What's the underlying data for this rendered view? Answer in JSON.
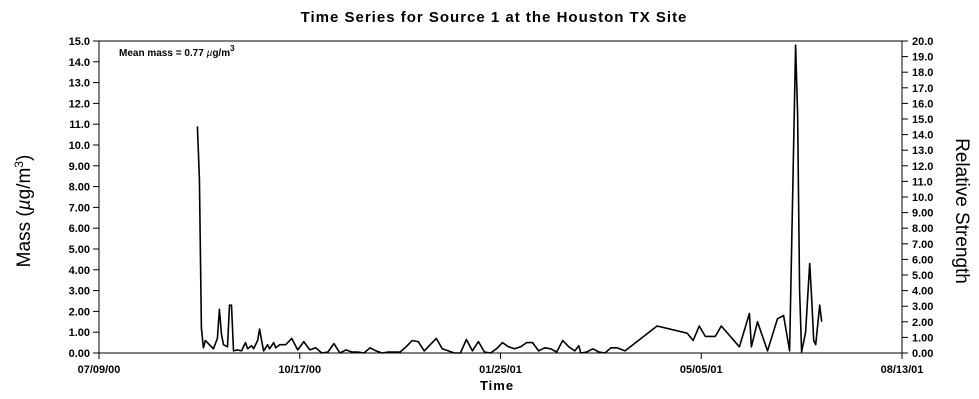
{
  "chart_data": {
    "type": "line",
    "title": "Time Series for Source 1 at the Houston TX Site",
    "xlabel": "Time",
    "ylabel": "Mass (µg/m³)",
    "ylabel_parts": {
      "prefix": "Mass (",
      "mu": "µ",
      "unit": "g/m",
      "sup": "3",
      "suffix": ")"
    },
    "y2label": "Relative Strength",
    "annotation": {
      "text": "Mean mass = 0.77 ",
      "mu": "µ",
      "unit": "g/m",
      "sup": "3"
    },
    "x_ticks": [
      "07/09/00",
      "10/17/00",
      "01/25/01",
      "05/05/01",
      "08/13/01"
    ],
    "xlim": [
      "07/09/00",
      "08/13/01"
    ],
    "ylim": [
      0,
      15
    ],
    "y2lim": [
      0,
      20
    ],
    "y_ticks": [
      "0.00",
      "1.00",
      "2.00",
      "3.00",
      "4.00",
      "5.00",
      "6.00",
      "7.00",
      "8.00",
      "9.00",
      "10.0",
      "11.0",
      "12.0",
      "13.0",
      "14.0",
      "15.0"
    ],
    "y2_ticks": [
      "0.00",
      "1.00",
      "2.00",
      "3.00",
      "4.00",
      "5.00",
      "6.00",
      "7.00",
      "8.00",
      "9.00",
      "10.0",
      "11.0",
      "12.0",
      "13.0",
      "14.0",
      "15.0",
      "16.0",
      "17.0",
      "18.0",
      "19.0",
      "20.0"
    ],
    "grid": false,
    "series": [
      {
        "color": "#000000",
        "points": [
          {
            "x": "2000-08-27",
            "y": 10.9
          },
          {
            "x": "2000-08-28",
            "y": 8.4
          },
          {
            "x": "2000-08-29",
            "y": 1.2
          },
          {
            "x": "2000-08-30",
            "y": 0.25
          },
          {
            "x": "2000-08-31",
            "y": 0.6
          },
          {
            "x": "2000-09-02",
            "y": 0.4
          },
          {
            "x": "2000-09-04",
            "y": 0.2
          },
          {
            "x": "2000-09-06",
            "y": 0.7
          },
          {
            "x": "2000-09-07",
            "y": 2.1
          },
          {
            "x": "2000-09-08",
            "y": 0.9
          },
          {
            "x": "2000-09-09",
            "y": 0.4
          },
          {
            "x": "2000-09-11",
            "y": 0.3
          },
          {
            "x": "2000-09-12",
            "y": 2.3
          },
          {
            "x": "2000-09-13",
            "y": 2.3
          },
          {
            "x": "2000-09-14",
            "y": 0.1
          },
          {
            "x": "2000-09-16",
            "y": 0.15
          },
          {
            "x": "2000-09-18",
            "y": 0.1
          },
          {
            "x": "2000-09-20",
            "y": 0.5
          },
          {
            "x": "2000-09-21",
            "y": 0.2
          },
          {
            "x": "2000-09-23",
            "y": 0.35
          },
          {
            "x": "2000-09-24",
            "y": 0.2
          },
          {
            "x": "2000-09-26",
            "y": 0.6
          },
          {
            "x": "2000-09-27",
            "y": 1.15
          },
          {
            "x": "2000-09-28",
            "y": 0.6
          },
          {
            "x": "2000-09-29",
            "y": 0.1
          },
          {
            "x": "2000-10-01",
            "y": 0.4
          },
          {
            "x": "2000-10-02",
            "y": 0.2
          },
          {
            "x": "2000-10-04",
            "y": 0.5
          },
          {
            "x": "2000-10-05",
            "y": 0.25
          },
          {
            "x": "2000-10-07",
            "y": 0.4
          },
          {
            "x": "2000-10-10",
            "y": 0.4
          },
          {
            "x": "2000-10-13",
            "y": 0.7
          },
          {
            "x": "2000-10-16",
            "y": 0.15
          },
          {
            "x": "2000-10-19",
            "y": 0.55
          },
          {
            "x": "2000-10-22",
            "y": 0.15
          },
          {
            "x": "2000-10-25",
            "y": 0.25
          },
          {
            "x": "2000-10-28",
            "y": 0.0
          },
          {
            "x": "2000-10-31",
            "y": 0.05
          },
          {
            "x": "2000-11-03",
            "y": 0.45
          },
          {
            "x": "2000-11-06",
            "y": 0.0
          },
          {
            "x": "2000-11-09",
            "y": 0.15
          },
          {
            "x": "2000-11-12",
            "y": 0.05
          },
          {
            "x": "2000-11-15",
            "y": 0.05
          },
          {
            "x": "2000-11-18",
            "y": 0.0
          },
          {
            "x": "2000-11-21",
            "y": 0.25
          },
          {
            "x": "2000-11-24",
            "y": 0.1
          },
          {
            "x": "2000-11-27",
            "y": 0.0
          },
          {
            "x": "2000-11-30",
            "y": 0.05
          },
          {
            "x": "2000-12-03",
            "y": 0.05
          },
          {
            "x": "2000-12-06",
            "y": 0.05
          },
          {
            "x": "2000-12-09",
            "y": 0.3
          },
          {
            "x": "2000-12-12",
            "y": 0.6
          },
          {
            "x": "2000-12-15",
            "y": 0.55
          },
          {
            "x": "2000-12-18",
            "y": 0.1
          },
          {
            "x": "2000-12-21",
            "y": 0.4
          },
          {
            "x": "2000-12-24",
            "y": 0.7
          },
          {
            "x": "2000-12-27",
            "y": 0.2
          },
          {
            "x": "2000-12-30",
            "y": 0.1
          },
          {
            "x": "2001-01-02",
            "y": 0.0
          },
          {
            "x": "2001-01-05",
            "y": 0.0
          },
          {
            "x": "2001-01-08",
            "y": 0.65
          },
          {
            "x": "2001-01-11",
            "y": 0.1
          },
          {
            "x": "2001-01-14",
            "y": 0.55
          },
          {
            "x": "2001-01-17",
            "y": 0.05
          },
          {
            "x": "2001-01-20",
            "y": 0.0
          },
          {
            "x": "2001-01-23",
            "y": 0.2
          },
          {
            "x": "2001-01-26",
            "y": 0.5
          },
          {
            "x": "2001-01-29",
            "y": 0.3
          },
          {
            "x": "2001-02-01",
            "y": 0.2
          },
          {
            "x": "2001-02-04",
            "y": 0.3
          },
          {
            "x": "2001-02-07",
            "y": 0.5
          },
          {
            "x": "2001-02-10",
            "y": 0.5
          },
          {
            "x": "2001-02-13",
            "y": 0.1
          },
          {
            "x": "2001-02-16",
            "y": 0.25
          },
          {
            "x": "2001-02-19",
            "y": 0.2
          },
          {
            "x": "2001-02-22",
            "y": 0.05
          },
          {
            "x": "2001-02-25",
            "y": 0.6
          },
          {
            "x": "2001-02-28",
            "y": 0.3
          },
          {
            "x": "2001-03-03",
            "y": 0.1
          },
          {
            "x": "2001-03-05",
            "y": 0.35
          },
          {
            "x": "2001-03-06",
            "y": 0.0
          },
          {
            "x": "2001-03-09",
            "y": 0.05
          },
          {
            "x": "2001-03-12",
            "y": 0.2
          },
          {
            "x": "2001-03-15",
            "y": 0.05
          },
          {
            "x": "2001-03-18",
            "y": 0.0
          },
          {
            "x": "2001-03-21",
            "y": 0.25
          },
          {
            "x": "2001-03-24",
            "y": 0.25
          },
          {
            "x": "2001-03-28",
            "y": 0.1
          },
          {
            "x": "2001-04-13",
            "y": 1.3
          },
          {
            "x": "2001-04-28",
            "y": 0.95
          },
          {
            "x": "2001-05-01",
            "y": 0.6
          },
          {
            "x": "2001-05-04",
            "y": 1.3
          },
          {
            "x": "2001-05-07",
            "y": 0.8
          },
          {
            "x": "2001-05-12",
            "y": 0.8
          },
          {
            "x": "2001-05-15",
            "y": 1.3
          },
          {
            "x": "2001-05-24",
            "y": 0.3
          },
          {
            "x": "2001-05-29",
            "y": 1.9
          },
          {
            "x": "2001-05-30",
            "y": 0.3
          },
          {
            "x": "2001-06-02",
            "y": 1.5
          },
          {
            "x": "2001-06-07",
            "y": 0.1
          },
          {
            "x": "2001-06-12",
            "y": 1.65
          },
          {
            "x": "2001-06-15",
            "y": 1.8
          },
          {
            "x": "2001-06-18",
            "y": 0.1
          },
          {
            "x": "2001-06-21",
            "y": 14.8
          },
          {
            "x": "2001-06-22",
            "y": 11.5
          },
          {
            "x": "2001-06-23",
            "y": 3.0
          },
          {
            "x": "2001-06-24",
            "y": 0.05
          },
          {
            "x": "2001-06-26",
            "y": 1.0
          },
          {
            "x": "2001-06-28",
            "y": 4.3
          },
          {
            "x": "2001-06-29",
            "y": 2.6
          },
          {
            "x": "2001-06-30",
            "y": 0.6
          },
          {
            "x": "2001-07-01",
            "y": 0.4
          },
          {
            "x": "2001-07-03",
            "y": 2.3
          },
          {
            "x": "2001-07-04",
            "y": 1.5
          }
        ]
      }
    ]
  }
}
